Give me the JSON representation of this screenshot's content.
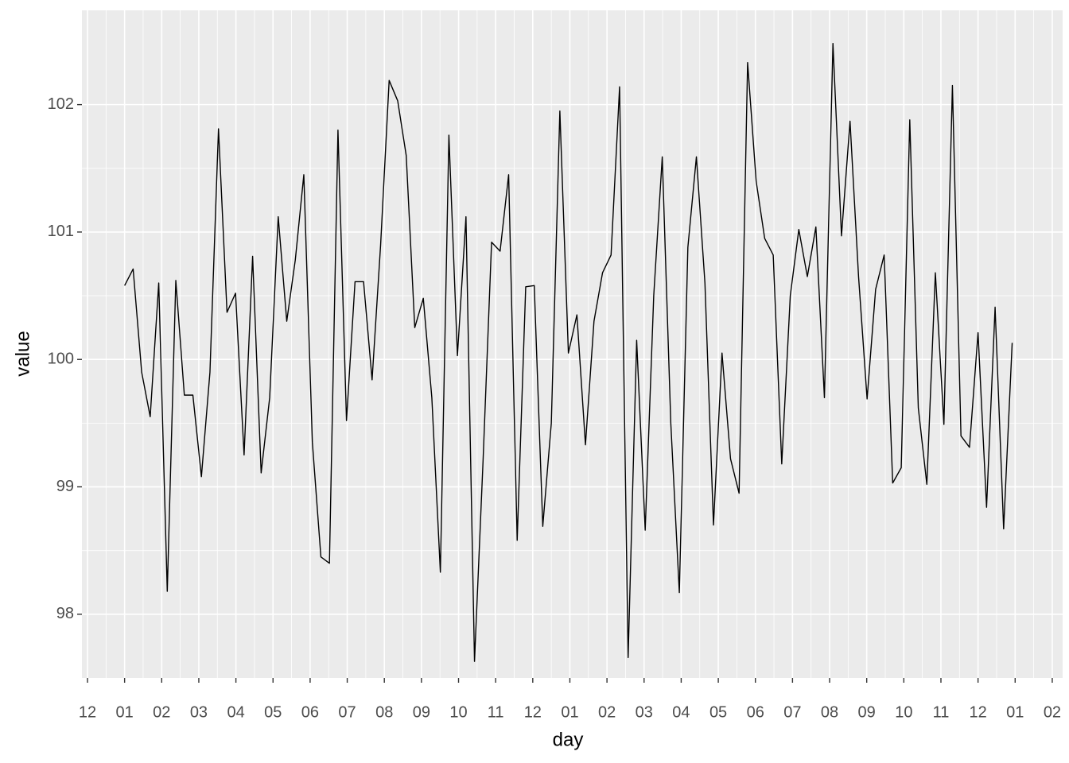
{
  "chart_data": {
    "type": "line",
    "x_label": "day",
    "y_label": "value",
    "x": [
      0,
      0.23,
      0.46,
      0.69,
      0.92,
      1.15,
      1.38,
      1.61,
      1.84,
      2.07,
      2.3,
      2.53,
      2.76,
      2.99,
      3.22,
      3.45,
      3.68,
      3.91,
      4.14,
      4.37,
      4.6,
      4.83,
      5.06,
      5.29,
      5.52,
      5.75,
      5.98,
      6.21,
      6.44,
      6.67,
      6.9,
      7.13,
      7.36,
      7.59,
      7.82,
      8.05,
      8.28,
      8.51,
      8.74,
      8.97,
      9.2,
      9.43,
      9.66,
      9.89,
      10.12,
      10.35,
      10.58,
      10.81,
      11.04,
      11.27,
      11.5,
      11.73,
      11.96,
      12.19,
      12.42,
      12.65,
      12.88,
      13.11,
      13.34,
      13.57,
      13.8,
      14.03,
      14.26,
      14.49,
      14.72,
      14.95,
      15.18,
      15.41,
      15.64,
      15.87,
      16.1,
      16.33,
      16.56,
      16.79,
      17.02,
      17.25,
      17.48,
      17.71,
      17.94,
      18.17,
      18.4,
      18.63,
      18.86,
      19.09,
      19.32,
      19.55,
      19.78,
      20.01,
      20.24,
      20.47,
      20.7,
      20.93,
      21.16,
      21.39,
      21.62,
      21.85,
      22.08,
      22.31,
      22.54,
      22.77,
      23,
      23.23,
      23.46,
      23.69,
      23.92
    ],
    "series": [
      {
        "color": "#000000",
        "values": [
          100.58,
          100.71,
          99.9,
          99.55,
          100.6,
          98.18,
          100.62,
          99.72,
          99.72,
          99.08,
          99.9,
          101.81,
          100.37,
          100.52,
          99.25,
          100.81,
          99.11,
          99.7,
          101.12,
          100.3,
          100.78,
          101.45,
          99.35,
          98.45,
          98.4,
          101.8,
          99.52,
          100.61,
          100.61,
          99.84,
          100.9,
          102.19,
          102.03,
          101.6,
          100.25,
          100.48,
          99.7,
          98.33,
          101.76,
          100.03,
          101.12,
          97.63,
          99.2,
          100.92,
          100.85,
          101.45,
          98.58,
          100.57,
          100.58,
          98.69,
          99.5,
          101.95,
          100.05,
          100.35,
          99.33,
          100.3,
          100.68,
          100.82,
          102.14,
          97.66,
          100.15,
          98.66,
          100.5,
          101.59,
          99.5,
          98.17,
          100.88,
          101.59,
          100.6,
          98.7,
          100.05,
          99.22,
          98.95,
          102.33,
          101.4,
          100.95,
          100.82,
          99.18,
          100.5,
          101.02,
          100.65,
          101.04,
          99.7,
          102.48,
          100.97,
          101.87,
          100.65,
          99.69,
          100.55,
          100.82,
          99.03,
          99.15,
          101.88,
          99.62,
          99.02,
          100.68,
          99.49,
          102.15,
          99.4,
          99.31,
          100.21,
          98.84,
          100.41,
          98.67,
          100.13
        ]
      }
    ],
    "xlim": [
      -1.15,
      25.28
    ],
    "xticks": [
      {
        "value": -1,
        "label": "12"
      },
      {
        "value": 0,
        "label": "01"
      },
      {
        "value": 1,
        "label": "02"
      },
      {
        "value": 2,
        "label": "03"
      },
      {
        "value": 3,
        "label": "04"
      },
      {
        "value": 4,
        "label": "05"
      },
      {
        "value": 5,
        "label": "06"
      },
      {
        "value": 6,
        "label": "07"
      },
      {
        "value": 7,
        "label": "08"
      },
      {
        "value": 8,
        "label": "09"
      },
      {
        "value": 9,
        "label": "10"
      },
      {
        "value": 10,
        "label": "11"
      },
      {
        "value": 11,
        "label": "12"
      },
      {
        "value": 12,
        "label": "01"
      },
      {
        "value": 13,
        "label": "02"
      },
      {
        "value": 14,
        "label": "03"
      },
      {
        "value": 15,
        "label": "04"
      },
      {
        "value": 16,
        "label": "05"
      },
      {
        "value": 17,
        "label": "06"
      },
      {
        "value": 18,
        "label": "07"
      },
      {
        "value": 19,
        "label": "08"
      },
      {
        "value": 20,
        "label": "09"
      },
      {
        "value": 21,
        "label": "10"
      },
      {
        "value": 22,
        "label": "11"
      },
      {
        "value": 23,
        "label": "12"
      },
      {
        "value": 24,
        "label": "01"
      },
      {
        "value": 25,
        "label": "02"
      }
    ],
    "ylim": [
      97.5,
      102.74
    ],
    "yticks": [
      98,
      99,
      100,
      101,
      102
    ],
    "grid": true
  }
}
